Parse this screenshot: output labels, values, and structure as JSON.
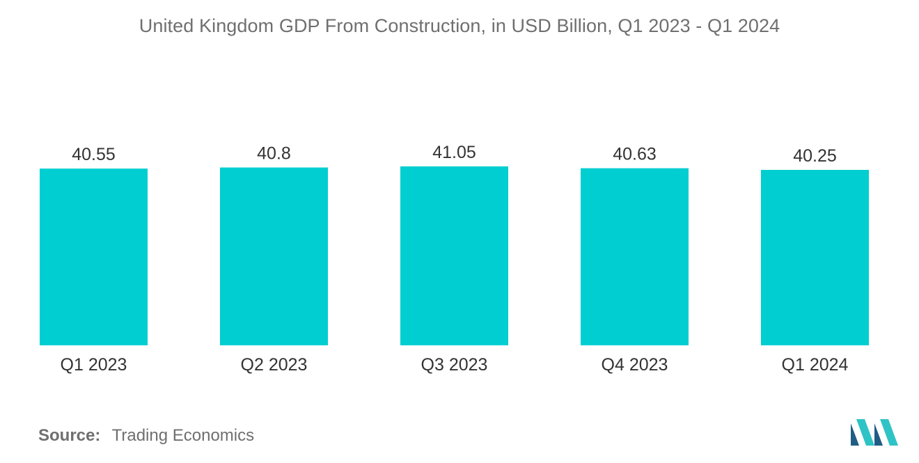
{
  "chart_data": {
    "type": "bar",
    "title": "United Kingdom GDP From Construction, in USD Billion, Q1 2023 - Q1 2024",
    "categories": [
      "Q1 2023",
      "Q2 2023",
      "Q3 2023",
      "Q4 2023",
      "Q1 2024"
    ],
    "values": [
      40.55,
      40.8,
      41.05,
      40.63,
      40.25
    ],
    "value_labels": [
      "40.55",
      "40.8",
      "41.05",
      "40.63",
      "40.25"
    ],
    "xlabel": "",
    "ylabel": "",
    "ylim": [
      0,
      41.05
    ],
    "grid": false,
    "legend": "none",
    "bar_color": "#00CED1"
  },
  "footer": {
    "source_label": "Source:",
    "source_value": "Trading Economics"
  },
  "colors": {
    "text": "#6f6f6f",
    "value_label": "#333333",
    "logo_dark": "#1f5d85",
    "logo_light": "#2fc3c6"
  },
  "logo": {
    "icon": "mordor-intelligence-logo-icon"
  }
}
